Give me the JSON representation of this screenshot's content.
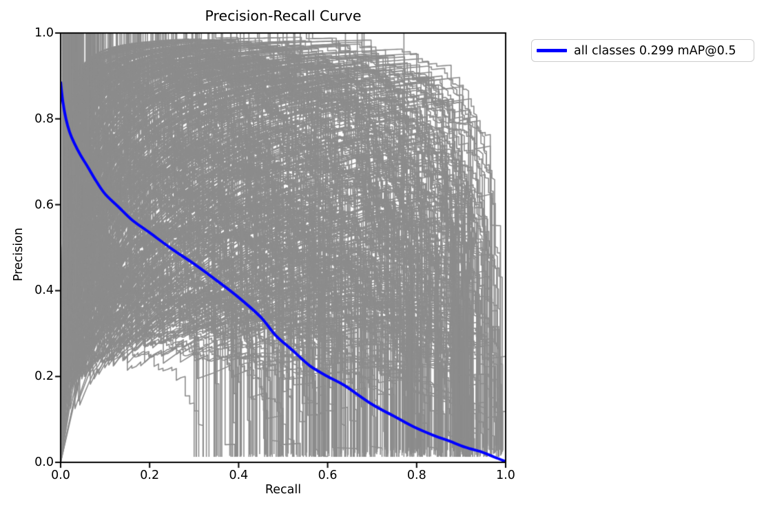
{
  "chart_data": {
    "type": "line",
    "title": "Precision-Recall Curve",
    "xlabel": "Recall",
    "ylabel": "Precision",
    "xlim": [
      0.0,
      1.0
    ],
    "ylim": [
      0.0,
      1.0
    ],
    "x_ticks": [
      "0.0",
      "0.2",
      "0.4",
      "0.6",
      "0.8",
      "1.0"
    ],
    "y_ticks": [
      "0.0",
      "0.2",
      "0.4",
      "0.6",
      "0.8",
      "1.0"
    ],
    "grid": false,
    "legend": {
      "label": "all classes 0.299 mAP@0.5",
      "position": "outside-upper-right",
      "line_color": "#0000ff"
    },
    "metrics": {
      "mAP@0.5": 0.299
    },
    "series": [
      {
        "name": "all classes",
        "color": "#0000ff",
        "linewidth": 4,
        "recall": [
          0.0,
          0.005,
          0.012,
          0.02,
          0.03,
          0.045,
          0.06,
          0.08,
          0.1,
          0.13,
          0.16,
          0.2,
          0.25,
          0.3,
          0.35,
          0.4,
          0.45,
          0.483,
          0.52,
          0.56,
          0.6,
          0.638,
          0.7,
          0.75,
          0.793,
          0.84,
          0.87,
          0.91,
          0.947,
          0.975,
          1.0
        ],
        "precision": [
          0.885,
          0.84,
          0.8,
          0.77,
          0.745,
          0.715,
          0.69,
          0.655,
          0.625,
          0.595,
          0.565,
          0.535,
          0.497,
          0.462,
          0.424,
          0.384,
          0.338,
          0.296,
          0.262,
          0.225,
          0.2,
          0.179,
          0.135,
          0.107,
          0.083,
          0.062,
          0.051,
          0.035,
          0.024,
          0.012,
          0.002
        ]
      }
    ],
    "background_curves": {
      "description": "unlabeled per-class precision-recall curves",
      "approx_count": 500,
      "color": "#8c8c8c",
      "linewidth": 1.6,
      "seed": 1234
    },
    "colors": {
      "axis": "#000000",
      "background": "#ffffff"
    }
  }
}
